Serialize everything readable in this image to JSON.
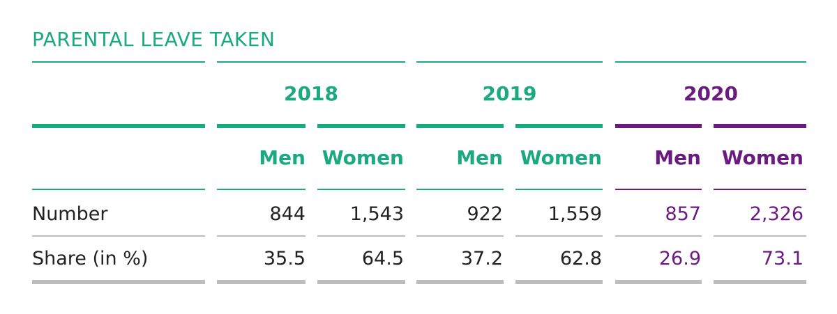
{
  "title": "PARENTAL LEAVE TAKEN",
  "colors": {
    "green": "#1aa981",
    "purple": "#6a1b7f",
    "grey": "#bdbdbd",
    "text": "#222222"
  },
  "years": [
    {
      "label": "2018",
      "color": "green"
    },
    {
      "label": "2019",
      "color": "green"
    },
    {
      "label": "2020",
      "color": "purple"
    }
  ],
  "subheaders": {
    "men": "Men",
    "women": "Women"
  },
  "rows": [
    {
      "label": "Number",
      "values": [
        "844",
        "1,543",
        "922",
        "1,559",
        "857",
        "2,326"
      ]
    },
    {
      "label": "Share (in %)",
      "values": [
        "35.5",
        "64.5",
        "37.2",
        "62.8",
        "26.9",
        "73.1"
      ]
    }
  ]
}
